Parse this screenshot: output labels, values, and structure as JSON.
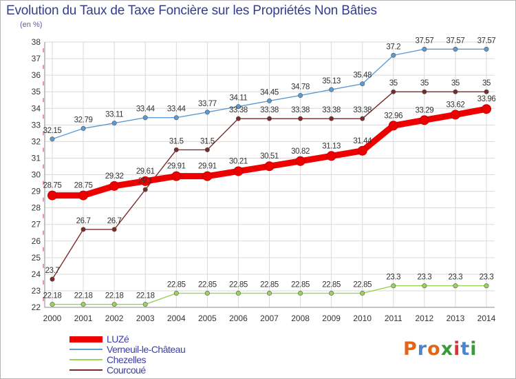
{
  "colors": {
    "title": "#333c8e",
    "axis_text": "#333333",
    "grid": "#d9d9d9",
    "axis_marks": "#d9333a",
    "logo": [
      "#e2661a",
      "#4a86c8",
      "#e2661a",
      "#3b9a3b",
      "#d9333a",
      "#4a86c8",
      "#3b9a3b"
    ]
  },
  "chart_data": {
    "type": "line",
    "title": "Evolution du Taux de Taxe Foncière sur les Propriétés Non Bâties",
    "ylabel": "(en %)",
    "xlabel": "",
    "ylim": [
      22,
      38
    ],
    "yticks": [
      "22",
      "23",
      "24",
      "25",
      "26",
      "27",
      "28",
      "29",
      "30",
      "31",
      "32",
      "33",
      "34",
      "35",
      "36",
      "37",
      "38"
    ],
    "categories": [
      "2000",
      "2001",
      "2002",
      "2003",
      "2004",
      "2005",
      "2006",
      "2007",
      "2008",
      "2009",
      "2010",
      "2011",
      "2012",
      "2013",
      "2014"
    ],
    "grid": true,
    "series": [
      {
        "name": "LUZé",
        "color": "#ee0000",
        "values": [
          28.75,
          28.75,
          29.32,
          29.61,
          29.91,
          29.91,
          30.21,
          30.51,
          30.82,
          31.13,
          31.44,
          32.96,
          33.29,
          33.62,
          33.96
        ],
        "labels": [
          "28.75",
          "28.75",
          "29.32",
          "29.61",
          "29.91",
          "29.91",
          "30.21",
          "30.51",
          "30.82",
          "31.13",
          "31.44",
          "32.96",
          "33.29",
          "33.62",
          "33.96"
        ]
      },
      {
        "name": "Verneuil-le-Château",
        "color": "#5b9bd5",
        "values": [
          32.15,
          32.79,
          33.11,
          33.44,
          33.44,
          33.77,
          34.11,
          34.45,
          34.78,
          35.13,
          35.48,
          37.2,
          37.57,
          37.57,
          37.57
        ],
        "labels": [
          "32.15",
          "32.79",
          "33.11",
          "33.44",
          "33.44",
          "33.77",
          "34.11",
          "34.45",
          "34.78",
          "35.13",
          "35.48",
          "37.2",
          "37.57",
          "37.57",
          "37.57"
        ]
      },
      {
        "name": "Chezelles",
        "color": "#9ad25a",
        "values": [
          22.18,
          22.18,
          22.18,
          22.18,
          22.85,
          22.85,
          22.85,
          22.85,
          22.85,
          22.85,
          22.85,
          23.3,
          23.3,
          23.3,
          23.3
        ],
        "labels": [
          "22.18",
          "22.18",
          "22.18",
          "22.18",
          "22.85",
          "22.85",
          "22.85",
          "22.85",
          "22.85",
          "22.85",
          "22.85",
          "23.3",
          "23.3",
          "23.3",
          "23.3"
        ]
      },
      {
        "name": "Courcoué",
        "color": "#7b2a2a",
        "values": [
          23.7,
          26.7,
          26.7,
          29.1,
          31.5,
          31.5,
          33.38,
          33.38,
          33.38,
          33.38,
          33.38,
          35,
          35,
          35,
          35
        ],
        "labels": [
          "23.7",
          "26.7",
          "26.7",
          "29.1",
          "31.5",
          "31.5",
          "33.38",
          "33.38",
          "33.38",
          "33.38",
          "33.38",
          "35",
          "35",
          "35",
          "35"
        ]
      }
    ]
  },
  "logo": {
    "text": "Proxiti",
    "letters": [
      "P",
      "r",
      "o",
      "x",
      "i",
      "t",
      "i"
    ]
  }
}
